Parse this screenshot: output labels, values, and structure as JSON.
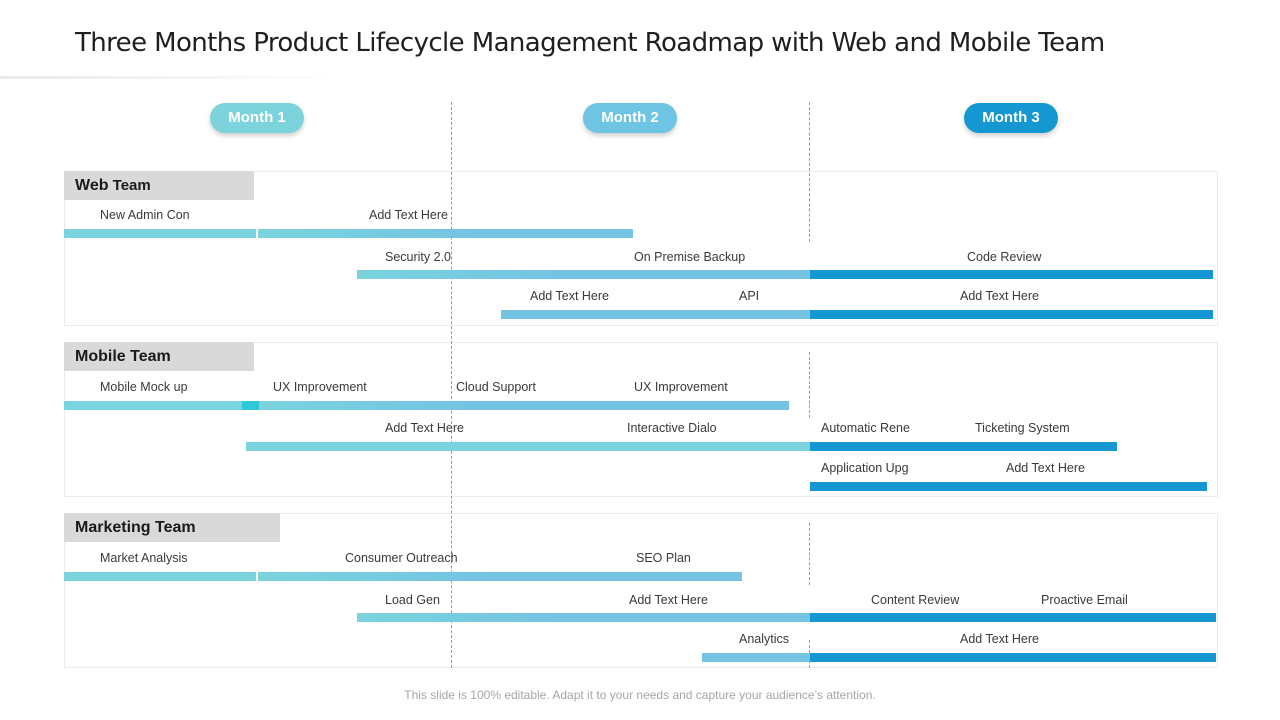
{
  "title": "Three Months Product Lifecycle Management Roadmap with Web and Mobile Team",
  "months": [
    {
      "label": "Month 1",
      "color": "#7dd3dc"
    },
    {
      "label": "Month 2",
      "color": "#6ec4e3"
    },
    {
      "label": "Month 3",
      "color": "#1597d2"
    }
  ],
  "colors": {
    "teal": "#7bd3dd",
    "mid": "#73c3e3",
    "blue": "#1597d2",
    "accent": "#2ec9d7",
    "label_bg": "#d9d9d9"
  },
  "teams": {
    "web": {
      "name_bold": "Web",
      "name_rest": " Team",
      "labels": [
        "New Admin Con",
        "Add Text Here",
        "Security 2.0",
        "On Premise Backup",
        "Code Review",
        "Add Text Here",
        "API",
        "Add Text Here"
      ]
    },
    "mobile": {
      "name": "Mobile Team",
      "labels": [
        "Mobile Mock up",
        "UX Improvement",
        "Cloud Support",
        "UX Improvement",
        "Add Text Here",
        "Interactive  Dialo",
        "Automatic Rene",
        "Ticketing System",
        "Application Upg",
        "Add Text Here"
      ]
    },
    "marketing": {
      "name": "Marketing Team",
      "labels": [
        "Market Analysis",
        "Consumer Outreach",
        "SEO Plan",
        "Load Gen",
        "Add Text Here",
        "Content Review",
        "Proactive  Email",
        "Analytics",
        "Add Text Here"
      ]
    }
  },
  "footer": "This slide is 100% editable. Adapt it to your needs and capture your audience’s attention."
}
